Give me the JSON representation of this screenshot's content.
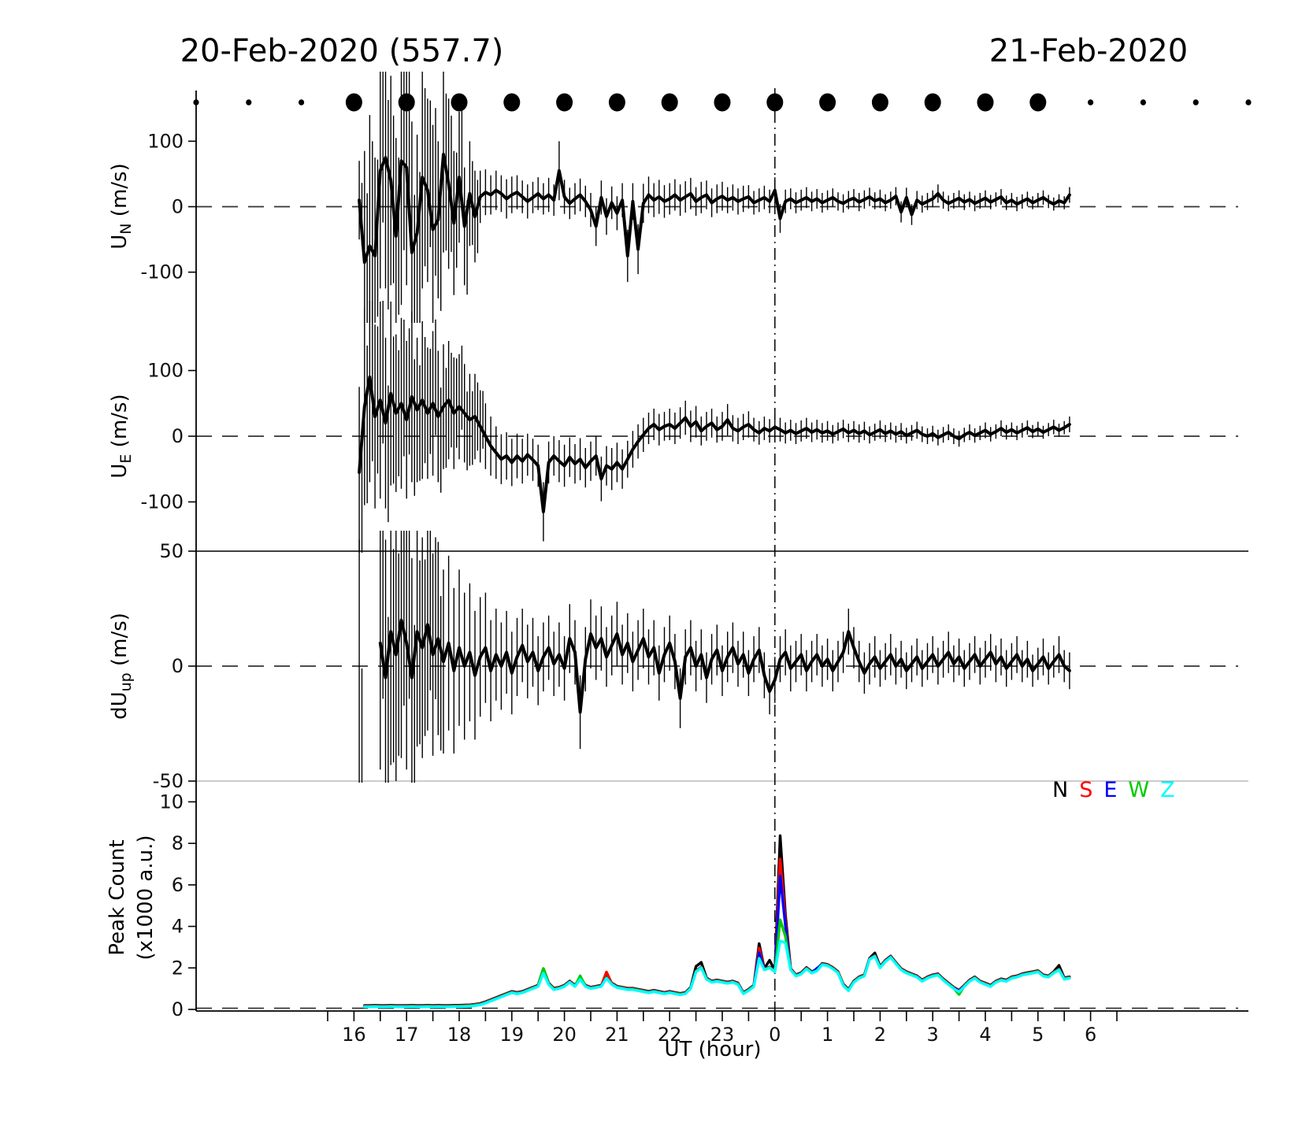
{
  "titles": {
    "left": "20-Feb-2020 (557.7)",
    "right": "21-Feb-2020"
  },
  "panels": [
    {
      "id": "un",
      "ylabel_pre": "U",
      "ylabel_sub": "N",
      "ylabel_post": " (m/s)"
    },
    {
      "id": "ue",
      "ylabel_pre": "U",
      "ylabel_sub": "E",
      "ylabel_post": " (m/s)"
    },
    {
      "id": "dup",
      "ylabel_pre": "dU",
      "ylabel_sub": "up",
      "ylabel_post": " (m/s)"
    },
    {
      "id": "peak",
      "ylabel_line1": "Peak Count",
      "ylabel_line2": "(x1000 a.u.)"
    }
  ],
  "axes": {
    "x": {
      "label": "UT (hour)",
      "major_values": [
        -8,
        -7,
        -6,
        -5,
        -4,
        -3,
        -2,
        -1,
        0,
        1,
        2,
        3,
        4,
        5,
        6
      ],
      "major_labels": [
        "16",
        "17",
        "18",
        "19",
        "20",
        "21",
        "22",
        "23",
        "0",
        "1",
        "2",
        "3",
        "4",
        "5",
        "6"
      ],
      "minor_start": -8.5,
      "minor_end": 6.5,
      "minor_step": 0.5,
      "range_hours": [
        -11,
        9
      ]
    }
  },
  "legend": {
    "items": [
      {
        "label": "N",
        "color": "#000000"
      },
      {
        "label": "S",
        "color": "#ff0000"
      },
      {
        "label": "E",
        "color": "#0000ff"
      },
      {
        "label": "W",
        "color": "#00cc00"
      },
      {
        "label": "Z",
        "color": "#00ffff"
      }
    ]
  },
  "moon_dots": {
    "hour_start": -11,
    "hour_end": 9,
    "big_from": -8,
    "big_to": 5
  },
  "chart_data": [
    {
      "type": "line",
      "name": "U_N",
      "ylabel": "U_N (m/s)",
      "ylim": [
        -175,
        175
      ],
      "yticks": [
        100,
        0,
        -100
      ],
      "ytick_labels": [
        "100",
        "0",
        "-100"
      ],
      "zero_line": true,
      "t0": -7.9,
      "dt": 0.1,
      "values": [
        10,
        -85,
        -60,
        -75,
        55,
        75,
        40,
        -45,
        70,
        60,
        -70,
        -40,
        45,
        25,
        -35,
        -20,
        80,
        35,
        -25,
        45,
        -30,
        20,
        -15,
        15,
        22,
        18,
        25,
        20,
        12,
        18,
        22,
        15,
        8,
        14,
        20,
        12,
        18,
        10,
        55,
        15,
        5,
        12,
        18,
        8,
        -5,
        -30,
        14,
        -15,
        6,
        -10,
        10,
        -75,
        8,
        -65,
        5,
        18,
        10,
        15,
        8,
        12,
        18,
        10,
        15,
        20,
        8,
        14,
        18,
        6,
        12,
        16,
        10,
        14,
        8,
        12,
        15,
        6,
        10,
        14,
        8,
        25,
        -18,
        8,
        12,
        6,
        10,
        14,
        8,
        12,
        6,
        10,
        14,
        8,
        5,
        10,
        13,
        7,
        11,
        15,
        9,
        12,
        6,
        10,
        16,
        -8,
        14,
        -12,
        10,
        4,
        8,
        12,
        20,
        10,
        5,
        9,
        13,
        7,
        11,
        5,
        9,
        13,
        7,
        11,
        15,
        6,
        10,
        4,
        8,
        12,
        6,
        10,
        14,
        8,
        4,
        9,
        6,
        18
      ],
      "errors": [
        60,
        170,
        200,
        150,
        180,
        200,
        160,
        150,
        220,
        180,
        200,
        150,
        170,
        140,
        160,
        120,
        150,
        130,
        110,
        100,
        90,
        80,
        70,
        40,
        35,
        30,
        30,
        28,
        30,
        28,
        26,
        25,
        26,
        24,
        25,
        24,
        26,
        24,
        45,
        26,
        24,
        24,
        25,
        24,
        26,
        30,
        26,
        28,
        25,
        26,
        26,
        40,
        28,
        38,
        30,
        28,
        26,
        26,
        25,
        24,
        24,
        24,
        24,
        24,
        22,
        24,
        22,
        22,
        22,
        22,
        20,
        20,
        20,
        20,
        18,
        18,
        18,
        18,
        18,
        20,
        22,
        18,
        16,
        16,
        16,
        16,
        15,
        15,
        15,
        15,
        14,
        14,
        14,
        14,
        14,
        14,
        14,
        14,
        13,
        14,
        13,
        13,
        14,
        16,
        15,
        16,
        14,
        13,
        13,
        13,
        14,
        13,
        12,
        12,
        12,
        12,
        12,
        12,
        12,
        12,
        11,
        11,
        12,
        11,
        11,
        11,
        11,
        11,
        10,
        11,
        11,
        10,
        10,
        10,
        10,
        12
      ]
    },
    {
      "type": "line",
      "name": "U_E",
      "ylabel": "U_E (m/s)",
      "ylim": [
        -175,
        175
      ],
      "yticks": [
        100,
        0,
        -100
      ],
      "ytick_labels": [
        "100",
        "0",
        "-100"
      ],
      "zero_line": true,
      "t0": -7.9,
      "dt": 0.1,
      "values": [
        -55,
        45,
        90,
        30,
        55,
        20,
        65,
        35,
        50,
        25,
        60,
        40,
        55,
        35,
        50,
        30,
        45,
        55,
        35,
        45,
        35,
        25,
        30,
        15,
        0,
        -15,
        -25,
        -35,
        -30,
        -40,
        -30,
        -38,
        -28,
        -36,
        -45,
        -115,
        -40,
        -30,
        -38,
        -45,
        -32,
        -42,
        -35,
        -48,
        -38,
        -30,
        -65,
        -45,
        -50,
        -40,
        -50,
        -35,
        -20,
        -8,
        2,
        12,
        18,
        10,
        15,
        18,
        12,
        20,
        28,
        15,
        22,
        8,
        15,
        20,
        10,
        15,
        25,
        12,
        8,
        14,
        18,
        10,
        5,
        12,
        8,
        14,
        10,
        5,
        9,
        4,
        8,
        12,
        6,
        10,
        5,
        8,
        3,
        7,
        11,
        5,
        9,
        4,
        8,
        2,
        6,
        10,
        4,
        8,
        3,
        7,
        1,
        5,
        9,
        3,
        0,
        4,
        -2,
        2,
        6,
        0,
        -4,
        2,
        6,
        1,
        5,
        9,
        3,
        7,
        12,
        6,
        10,
        5,
        9,
        13,
        7,
        11,
        6,
        10,
        14,
        9,
        13,
        18
      ],
      "errors": [
        130,
        150,
        160,
        140,
        150,
        130,
        140,
        120,
        130,
        120,
        130,
        110,
        120,
        100,
        110,
        100,
        95,
        90,
        85,
        80,
        75,
        70,
        65,
        55,
        50,
        45,
        40,
        38,
        36,
        36,
        34,
        34,
        32,
        32,
        32,
        45,
        32,
        30,
        32,
        32,
        30,
        30,
        32,
        30,
        30,
        30,
        34,
        30,
        32,
        30,
        30,
        28,
        28,
        26,
        26,
        24,
        24,
        24,
        22,
        24,
        24,
        24,
        26,
        24,
        24,
        22,
        22,
        22,
        20,
        22,
        24,
        20,
        20,
        20,
        20,
        18,
        18,
        18,
        18,
        18,
        18,
        16,
        16,
        16,
        16,
        16,
        15,
        15,
        15,
        15,
        14,
        14,
        14,
        14,
        14,
        14,
        14,
        13,
        13,
        14,
        13,
        13,
        13,
        13,
        12,
        12,
        13,
        12,
        12,
        12,
        12,
        12,
        12,
        12,
        12,
        11,
        12,
        11,
        11,
        12,
        11,
        11,
        12,
        11,
        11,
        11,
        11,
        11,
        10,
        11,
        10,
        10,
        11,
        10,
        10,
        12
      ]
    },
    {
      "type": "line",
      "name": "dU_up",
      "ylabel": "dU_up (m/s)",
      "ylim": [
        -50,
        50
      ],
      "yticks": [
        50,
        0,
        -50
      ],
      "ytick_labels": [
        "50",
        "0",
        "-50"
      ],
      "zero_line": true,
      "t0": -7.9,
      "dt": 0.1,
      "values": [
        -45,
        null,
        null,
        null,
        10,
        -5,
        15,
        5,
        20,
        10,
        -5,
        15,
        8,
        18,
        5,
        12,
        2,
        10,
        -2,
        8,
        0,
        6,
        -4,
        4,
        8,
        -2,
        5,
        0,
        6,
        -3,
        4,
        9,
        2,
        6,
        -2,
        4,
        8,
        1,
        5,
        -1,
        12,
        6,
        -20,
        3,
        14,
        8,
        12,
        4,
        9,
        14,
        5,
        10,
        2,
        7,
        12,
        4,
        8,
        -3,
        5,
        10,
        2,
        -14,
        4,
        8,
        0,
        5,
        -5,
        3,
        7,
        -2,
        4,
        8,
        1,
        5,
        -3,
        3,
        7,
        -4,
        -11,
        -6,
        3,
        6,
        -1,
        2,
        5,
        -2,
        2,
        5,
        0,
        3,
        -2,
        2,
        6,
        15,
        8,
        2,
        -3,
        1,
        4,
        -1,
        2,
        5,
        0,
        3,
        -2,
        1,
        4,
        -1,
        2,
        5,
        0,
        3,
        6,
        1,
        4,
        -1,
        2,
        5,
        0,
        3,
        6,
        1,
        4,
        -1,
        2,
        5,
        0,
        3,
        -2,
        1,
        4,
        -1,
        2,
        5,
        0,
        -2
      ],
      "errors": [
        100,
        0,
        0,
        0,
        55,
        60,
        58,
        55,
        60,
        55,
        52,
        50,
        48,
        46,
        44,
        42,
        40,
        38,
        36,
        34,
        32,
        30,
        28,
        26,
        24,
        22,
        20,
        19,
        18,
        18,
        17,
        16,
        16,
        15,
        15,
        15,
        14,
        14,
        14,
        14,
        15,
        14,
        16,
        14,
        15,
        14,
        14,
        13,
        13,
        14,
        13,
        13,
        13,
        13,
        13,
        12,
        12,
        12,
        12,
        12,
        12,
        13,
        12,
        12,
        11,
        11,
        11,
        11,
        11,
        11,
        11,
        11,
        10,
        10,
        10,
        10,
        10,
        10,
        10,
        10,
        10,
        10,
        10,
        9,
        9,
        9,
        9,
        9,
        9,
        9,
        9,
        9,
        9,
        10,
        9,
        9,
        9,
        9,
        9,
        8,
        8,
        9,
        8,
        8,
        8,
        8,
        8,
        8,
        8,
        8,
        8,
        8,
        9,
        8,
        8,
        8,
        8,
        8,
        8,
        8,
        8,
        8,
        8,
        8,
        8,
        8,
        7,
        8,
        7,
        7,
        8,
        7,
        7,
        8,
        7,
        8
      ]
    },
    {
      "type": "line",
      "name": "Peak Count",
      "ylabel": "Peak Count (x1000 a.u.)",
      "ylim": [
        0,
        11
      ],
      "yticks": [
        0,
        2,
        4,
        6,
        8,
        10
      ],
      "ytick_labels": [
        "0",
        "2",
        "4",
        "6",
        "8",
        "10"
      ],
      "zero_line": true,
      "t0": -7.8,
      "dt": 0.1,
      "base": [
        0.12,
        0.12,
        0.13,
        0.12,
        0.12,
        0.13,
        0.12,
        0.12,
        0.12,
        0.13,
        0.12,
        0.12,
        0.13,
        0.12,
        0.13,
        0.12,
        0.12,
        0.13,
        0.13,
        0.14,
        0.15,
        0.18,
        0.22,
        0.3,
        0.4,
        0.5,
        0.6,
        0.7,
        0.8,
        0.75,
        0.8,
        0.9,
        1.0,
        1.1,
        1.75,
        1.2,
        0.95,
        1.0,
        1.1,
        1.3,
        1.1,
        1.45,
        1.1,
        1.0,
        1.05,
        1.1,
        1.5,
        1.2,
        1.05,
        1.0,
        0.95,
        0.95,
        0.9,
        0.85,
        0.8,
        0.85,
        0.8,
        0.75,
        0.8,
        0.75,
        0.7,
        0.75,
        1.0,
        1.8,
        2.0,
        1.45,
        1.3,
        1.35,
        1.3,
        1.25,
        1.3,
        1.2,
        0.75,
        0.9,
        1.1,
        2.45,
        1.9,
        2.0,
        1.8,
        3.3,
        3.2,
        1.9,
        1.6,
        1.7,
        1.95,
        1.75,
        1.85,
        2.15,
        2.1,
        1.95,
        1.75,
        1.15,
        0.9,
        1.3,
        1.5,
        1.6,
        2.4,
        2.55,
        2.0,
        2.3,
        2.5,
        2.2,
        1.9,
        1.75,
        1.65,
        1.55,
        1.35,
        1.5,
        1.6,
        1.65,
        1.4,
        1.2,
        1.0,
        0.85,
        1.1,
        1.35,
        1.5,
        1.3,
        1.2,
        1.1,
        1.3,
        1.4,
        1.35,
        1.5,
        1.55,
        1.65,
        1.7,
        1.75,
        1.8,
        1.6,
        1.55,
        1.75,
        1.9,
        1.45,
        1.5
      ],
      "series": [
        {
          "name": "N",
          "color": "#000000",
          "offset": 0.07,
          "deltas": {
            "-4.4": 0.15,
            "-1.5": 0.2,
            "-1.4": 0.2,
            "-0.3": 0.65,
            "-0.1": 0.3,
            "0.1": 5.0,
            "0.2": 1.3,
            "1.9": 0.1,
            "5.4": 0.15
          }
        },
        {
          "name": "S",
          "color": "#ff0000",
          "offset": 0.05,
          "deltas": {
            "-3.2": 0.25,
            "-0.3": 0.45,
            "0.1": 3.9,
            "0.2": 1.0
          }
        },
        {
          "name": "E",
          "color": "#0000ff",
          "offset": 0.03,
          "deltas": {
            "-0.3": 0.25,
            "0.1": 3.1,
            "0.2": 0.8,
            "0.8": 0.1
          }
        },
        {
          "name": "W",
          "color": "#00cc00",
          "offset": 0.02,
          "deltas": {
            "-4.4": 0.2,
            "-3.7": 0.15,
            "0.1": 1.0,
            "0.2": 0.3,
            "3.5": -0.15
          }
        },
        {
          "name": "Z",
          "color": "#00ffff",
          "offset": 0.0,
          "deltas": {}
        }
      ]
    }
  ]
}
